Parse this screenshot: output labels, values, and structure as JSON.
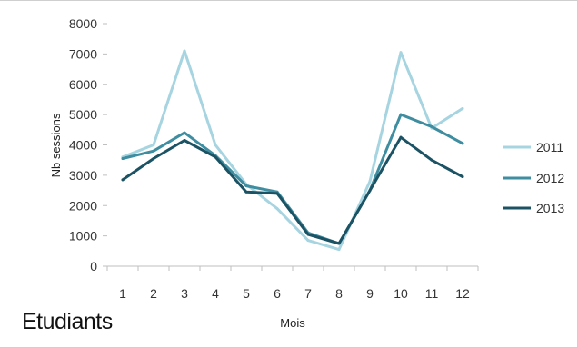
{
  "panel_title": "Etudiants",
  "chart_data": {
    "type": "line",
    "title": "",
    "xlabel": "Mois",
    "ylabel": "Nb sessions",
    "categories": [
      "1",
      "2",
      "3",
      "4",
      "5",
      "6",
      "7",
      "8",
      "9",
      "10",
      "11",
      "12"
    ],
    "ylim": [
      0,
      8000
    ],
    "yticks": [
      0,
      1000,
      2000,
      3000,
      4000,
      5000,
      6000,
      7000,
      8000
    ],
    "ytick_labels": [
      "0",
      "1000",
      "2000",
      "3000",
      "4000",
      "5000",
      "6000",
      "7000",
      "8000"
    ],
    "grid": false,
    "legend_position": "right",
    "series": [
      {
        "name": "2011",
        "color": "#a6d4e0",
        "values": [
          3600,
          4000,
          7100,
          4000,
          2700,
          1900,
          850,
          550,
          2800,
          7050,
          4550,
          5200
        ]
      },
      {
        "name": "2012",
        "color": "#3f8da0",
        "values": [
          3550,
          3800,
          4400,
          3650,
          2650,
          2450,
          1100,
          750,
          2500,
          5000,
          4600,
          4050
        ]
      },
      {
        "name": "2013",
        "color": "#1c5364",
        "values": [
          2850,
          3550,
          4150,
          3600,
          2450,
          2400,
          1050,
          750,
          2500,
          4250,
          3500,
          2950
        ]
      }
    ]
  }
}
